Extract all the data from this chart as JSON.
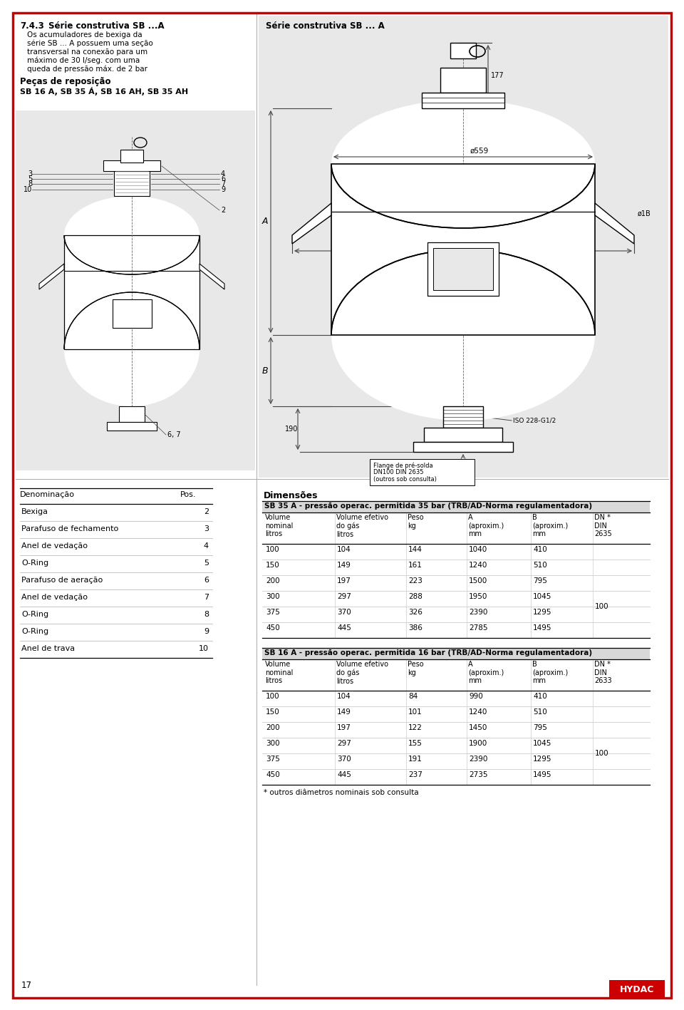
{
  "page_bg": "#ffffff",
  "gray_bg": "#e8e8e8",
  "red_border": "#cc0000",
  "section_number": "7.4.3",
  "section_title": "Série construtiva SB ...A",
  "section_text_line1": "Os acumuladores de bexiga da",
  "section_text_line2": "série SB ... A possuem uma seção",
  "section_text_line3": "transversal na conexão para um",
  "section_text_line4": "máximo de 30 l/seg. com uma",
  "section_text_line5": "queda de pressão máx. de 2 bar",
  "pecas_title": "Peças de reposição",
  "pecas_subtitle": "SB 16 A, SB 35 Á, SB 16 AH, SB 35 AH",
  "diagram_title": "Série construtiva SB ... A",
  "parts": [
    [
      "Denominação",
      "Pos."
    ],
    [
      "Bexiga",
      "2"
    ],
    [
      "Parafuso de fechamento",
      "3"
    ],
    [
      "Anel de vedação",
      "4"
    ],
    [
      "O-Ring",
      "5"
    ],
    [
      "Parafuso de aeração",
      "6"
    ],
    [
      "Anel de vedação",
      "7"
    ],
    [
      "O-Ring",
      "8"
    ],
    [
      "O-Ring",
      "9"
    ],
    [
      "Anel de trava",
      "10"
    ]
  ],
  "dim_title": "Dimensões",
  "table1_header": "SB 35 A - pressão operac. permitida 35 bar (TRB/AD-Norma regulamentadora)",
  "table1_col_headers": [
    "Volume\nnominal\nlitros",
    "Volume efetivo\ndo gás\nlitros",
    "Peso\nkg",
    "A\n(aproxim.)\nmm",
    "B\n(aproxim.)\nmm",
    "DN *\nDIN\n2635"
  ],
  "table1_data": [
    [
      "100",
      "104",
      "144",
      "1040",
      "410",
      ""
    ],
    [
      "150",
      "149",
      "161",
      "1240",
      "510",
      ""
    ],
    [
      "200",
      "197",
      "223",
      "1500",
      "795",
      "100"
    ],
    [
      "300",
      "297",
      "288",
      "1950",
      "1045",
      ""
    ],
    [
      "375",
      "370",
      "326",
      "2390",
      "1295",
      ""
    ],
    [
      "450",
      "445",
      "386",
      "2785",
      "1495",
      ""
    ]
  ],
  "table2_header": "SB 16 A - pressão operac. permitida 16 bar (TRB/AD-Norma regulamentadora)",
  "table2_col_headers": [
    "Volume\nnominal\nlitros",
    "Volume efetivo\ndo gás\nlitros",
    "Peso\nkg",
    "A\n(aproxim.)\nmm",
    "B\n(aproxim.)\nmm",
    "DN *\nDIN\n2633"
  ],
  "table2_data": [
    [
      "100",
      "104",
      "84",
      "990",
      "410",
      ""
    ],
    [
      "150",
      "149",
      "101",
      "1240",
      "510",
      ""
    ],
    [
      "200",
      "197",
      "122",
      "1450",
      "795",
      "100"
    ],
    [
      "300",
      "297",
      "155",
      "1900",
      "1045",
      ""
    ],
    [
      "375",
      "370",
      "191",
      "2390",
      "1295",
      ""
    ],
    [
      "450",
      "445",
      "237",
      "2735",
      "1495",
      ""
    ]
  ],
  "footnote": "* outros diâmetros nominais sob consulta",
  "hydac_text": "HYDAC",
  "page_num": "17"
}
